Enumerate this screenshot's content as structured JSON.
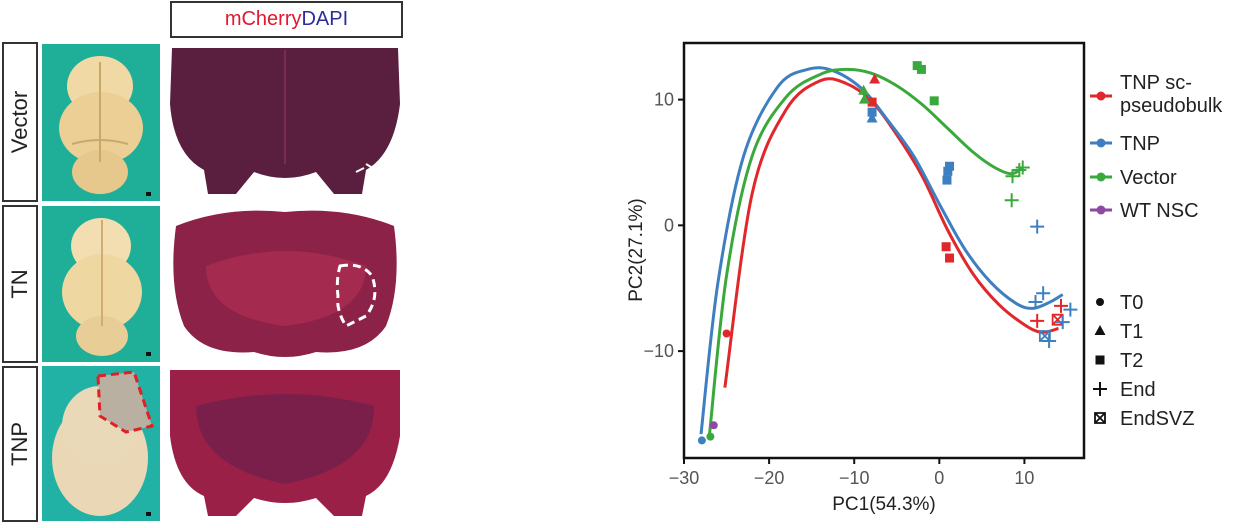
{
  "panel_left": {
    "header": {
      "part1": "mCherry",
      "part2": "DAPI",
      "color1": "#e0182d",
      "color2": "#2b2c9a"
    },
    "rows": [
      {
        "label": "Vector"
      },
      {
        "label": "TN"
      },
      {
        "label": "TNP"
      }
    ]
  },
  "chart_data": {
    "type": "scatter",
    "xlabel": "PC1(54.3%)",
    "ylabel": "PC2(27.1%)",
    "xlim": [
      -30,
      17
    ],
    "ylim": [
      -18.5,
      14.5
    ],
    "xticks": [
      -30,
      -20,
      -10,
      0,
      10
    ],
    "yticks": [
      10,
      0,
      -10
    ],
    "series": [
      {
        "name": "TNP sc-\npseudobulk",
        "color": "#e0272b",
        "points": [
          {
            "x": -25,
            "y": -8.6,
            "shape": "circle"
          },
          {
            "x": -7.6,
            "y": 11.6,
            "shape": "triangle"
          },
          {
            "x": -7.9,
            "y": 9.8,
            "shape": "square"
          },
          {
            "x": 0.8,
            "y": -1.7,
            "shape": "square"
          },
          {
            "x": 1.2,
            "y": -2.6,
            "shape": "square"
          },
          {
            "x": 11.5,
            "y": -7.6,
            "shape": "plus"
          },
          {
            "x": 14.3,
            "y": -6.4,
            "shape": "plus"
          },
          {
            "x": 13.9,
            "y": -7.5,
            "shape": "boxx"
          }
        ],
        "curve": [
          [
            -25.2,
            -12.9
          ],
          [
            -22,
            2.5
          ],
          [
            -18,
            9.2
          ],
          [
            -14,
            11.5
          ],
          [
            -11,
            11.3
          ],
          [
            -8,
            9.9
          ],
          [
            -5,
            7.2
          ],
          [
            -2,
            3.9
          ],
          [
            1,
            -0.4
          ],
          [
            4,
            -3.9
          ],
          [
            7,
            -6.3
          ],
          [
            10,
            -7.9
          ],
          [
            12,
            -8.5
          ],
          [
            14,
            -8.2
          ]
        ]
      },
      {
        "name": "TNP",
        "color": "#3d7fc1",
        "points": [
          {
            "x": -27.9,
            "y": -17.1,
            "shape": "circle"
          },
          {
            "x": -7.9,
            "y": 8.5,
            "shape": "triangle"
          },
          {
            "x": -7.9,
            "y": 9.0,
            "shape": "square"
          },
          {
            "x": 1.2,
            "y": 4.7,
            "shape": "square"
          },
          {
            "x": 1.0,
            "y": 4.3,
            "shape": "square"
          },
          {
            "x": 0.9,
            "y": 3.6,
            "shape": "square"
          },
          {
            "x": 11.5,
            "y": -0.1,
            "shape": "plus"
          },
          {
            "x": 12.2,
            "y": -5.4,
            "shape": "plus"
          },
          {
            "x": 11.3,
            "y": -6.1,
            "shape": "plus"
          },
          {
            "x": 14.5,
            "y": -7.7,
            "shape": "plus"
          },
          {
            "x": 15.4,
            "y": -6.7,
            "shape": "plus"
          },
          {
            "x": 12.9,
            "y": -9.2,
            "shape": "plus"
          },
          {
            "x": 12.4,
            "y": -8.8,
            "shape": "boxx"
          }
        ],
        "curve": [
          [
            -28,
            -16.6
          ],
          [
            -26,
            -4.5
          ],
          [
            -23,
            5.5
          ],
          [
            -19,
            11
          ],
          [
            -15.5,
            12.4
          ],
          [
            -12.5,
            12.3
          ],
          [
            -9,
            10.8
          ],
          [
            -6,
            8.3
          ],
          [
            -3,
            5.5
          ],
          [
            0,
            1.7
          ],
          [
            3,
            -1.9
          ],
          [
            6,
            -4.5
          ],
          [
            9,
            -6.2
          ],
          [
            11,
            -6.6
          ],
          [
            13,
            -6.1
          ],
          [
            14.5,
            -5.5
          ]
        ]
      },
      {
        "name": "Vector",
        "color": "#3aa93c",
        "points": [
          {
            "x": -26.9,
            "y": -16.8,
            "shape": "circle"
          },
          {
            "x": -8.8,
            "y": 10.0,
            "shape": "triangle"
          },
          {
            "x": -8.9,
            "y": 10.7,
            "shape": "triangle"
          },
          {
            "x": -2.6,
            "y": 12.7,
            "shape": "square"
          },
          {
            "x": -2.1,
            "y": 12.4,
            "shape": "square"
          },
          {
            "x": -0.6,
            "y": 9.9,
            "shape": "square"
          },
          {
            "x": 8.6,
            "y": 3.9,
            "shape": "plus"
          },
          {
            "x": 9.4,
            "y": 4.4,
            "shape": "plus"
          },
          {
            "x": 9.8,
            "y": 4.6,
            "shape": "plus"
          },
          {
            "x": 8.5,
            "y": 2.0,
            "shape": "plus"
          }
        ],
        "curve": [
          [
            -27,
            -16.6
          ],
          [
            -25,
            -4
          ],
          [
            -22,
            5.5
          ],
          [
            -18,
            10.2
          ],
          [
            -14,
            12
          ],
          [
            -11,
            12.4
          ],
          [
            -8,
            12.1
          ],
          [
            -5,
            11.1
          ],
          [
            -2,
            9.6
          ],
          [
            1,
            7.7
          ],
          [
            4,
            5.8
          ],
          [
            6.5,
            4.6
          ],
          [
            8.5,
            4.1
          ],
          [
            9.8,
            4.6
          ]
        ]
      },
      {
        "name": "WT NSC",
        "color": "#8e4aa2",
        "points": [
          {
            "x": -26.5,
            "y": -15.9,
            "shape": "circle"
          }
        ],
        "curve": []
      }
    ],
    "shape_legend": [
      {
        "shape": "circle",
        "label": "T0"
      },
      {
        "shape": "triangle",
        "label": "T1"
      },
      {
        "shape": "square",
        "label": "T2"
      },
      {
        "shape": "plus",
        "label": "End"
      },
      {
        "shape": "boxx",
        "label": "EndSVZ"
      }
    ]
  }
}
